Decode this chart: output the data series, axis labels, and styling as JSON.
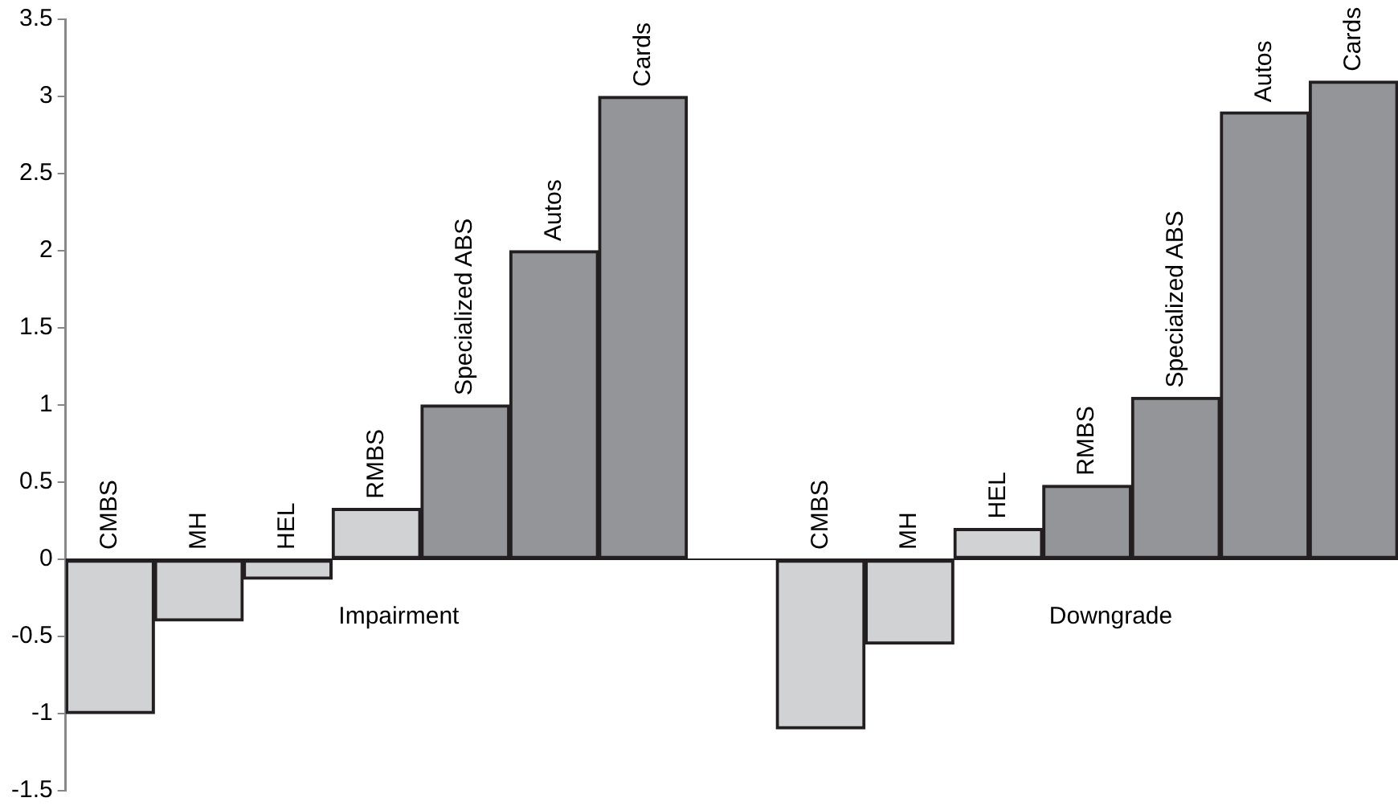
{
  "chart_data": {
    "type": "bar",
    "categories": [
      "CMBS",
      "MH",
      "HEL",
      "RMBS",
      "Specialized ABS",
      "Autos",
      "Cards",
      null,
      "CMBS",
      "MH",
      "HEL",
      "RMBS",
      "Specialized ABS",
      "Autos",
      "Cards"
    ],
    "values": [
      -1.0,
      -0.4,
      -0.13,
      0.33,
      1.0,
      2.0,
      3.0,
      null,
      -1.1,
      -0.55,
      0.2,
      0.48,
      1.05,
      2.9,
      3.1
    ],
    "colors": [
      "#d1d2d4",
      "#d1d2d4",
      "#d1d2d4",
      "#d1d2d4",
      "#939598",
      "#939598",
      "#939598",
      "#939598",
      "#d1d2d4",
      "#d1d2d4",
      "#d1d2d4",
      "#939598",
      "#939598",
      "#939598",
      "#939598"
    ],
    "ylim": [
      -1.5,
      3.5
    ],
    "yticks": [
      -1.5,
      -1,
      -0.5,
      0,
      0.5,
      1,
      1.5,
      2,
      2.5,
      3,
      3.5
    ],
    "annotations": [
      "Impairment",
      "Downgrade"
    ],
    "grid": false,
    "legend": false
  }
}
